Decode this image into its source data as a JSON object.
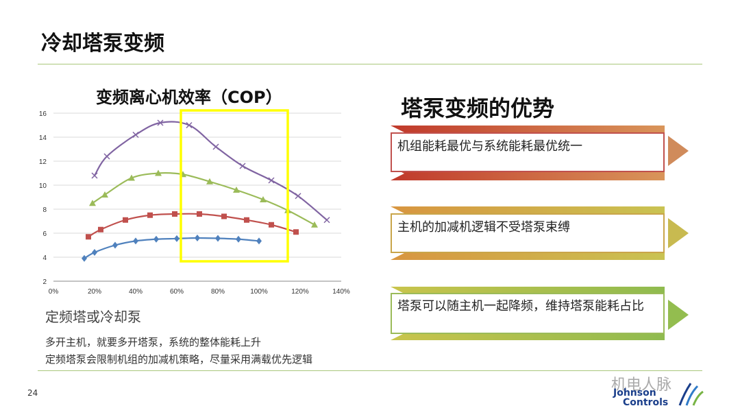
{
  "slide": {
    "title": "冷却塔泵变频",
    "page_number": "24"
  },
  "left_panel": {
    "sub_heading": "定频塔或冷却泵",
    "notes": [
      "多开主机，就要多开塔泵，系统的整体能耗上升",
      "定频塔泵会限制机组的加减机策略，尽量采用满载优先逻辑"
    ]
  },
  "right_panel": {
    "title": "塔泵变频的优势",
    "advantages": [
      "机组能耗最优与系统能耗最优统一",
      "主机的加减机逻辑不受塔泵束缚",
      "塔泵可以随主机一起降频，维持塔泵能耗占比"
    ]
  },
  "brand": {
    "watermark": "机电人脉",
    "logo_line1": "Johnson",
    "logo_line2": "Controls"
  },
  "colors": {
    "accent_rule": "#a9c77b",
    "highlight": "#ffff00",
    "series_purple": "#8064a2",
    "series_green": "#9bbb59",
    "series_red": "#c0504d",
    "series_blue": "#4f81bd"
  },
  "chart_data": {
    "type": "line",
    "title": "变频离心机效率（COP）",
    "xlabel": "",
    "ylabel": "",
    "xlim": [
      0,
      140
    ],
    "ylim": [
      2,
      16
    ],
    "x_ticks": [
      "0%",
      "20%",
      "40%",
      "60%",
      "80%",
      "100%",
      "120%",
      "140%"
    ],
    "y_ticks": [
      "2",
      "4",
      "6",
      "8",
      "10",
      "12",
      "14",
      "16"
    ],
    "grid": true,
    "highlight_range_x": [
      62,
      114
    ],
    "series": [
      {
        "name": "purple",
        "marker": "x",
        "color": "#8064a2",
        "x": [
          20,
          26,
          40,
          52,
          66,
          79,
          92,
          106,
          119,
          133
        ],
        "y": [
          10.8,
          12.4,
          14.2,
          15.2,
          15.0,
          13.2,
          11.6,
          10.4,
          9.1,
          7.1
        ]
      },
      {
        "name": "green",
        "marker": "triangle",
        "color": "#9bbb59",
        "x": [
          19,
          25,
          38,
          51,
          63,
          76,
          89,
          102,
          114,
          127
        ],
        "y": [
          8.5,
          9.2,
          10.6,
          11.0,
          10.9,
          10.3,
          9.6,
          8.8,
          7.9,
          6.7
        ]
      },
      {
        "name": "red",
        "marker": "square",
        "color": "#c0504d",
        "x": [
          17,
          23,
          35,
          47,
          59,
          71,
          83,
          94,
          106,
          118
        ],
        "y": [
          5.7,
          6.3,
          7.1,
          7.5,
          7.6,
          7.6,
          7.4,
          7.1,
          6.7,
          6.1
        ]
      },
      {
        "name": "blue",
        "marker": "diamond",
        "color": "#4f81bd",
        "x": [
          15,
          20,
          30,
          40,
          50,
          60,
          70,
          80,
          90,
          100
        ],
        "y": [
          3.9,
          4.4,
          5.0,
          5.35,
          5.5,
          5.55,
          5.6,
          5.57,
          5.5,
          5.35
        ]
      }
    ]
  }
}
